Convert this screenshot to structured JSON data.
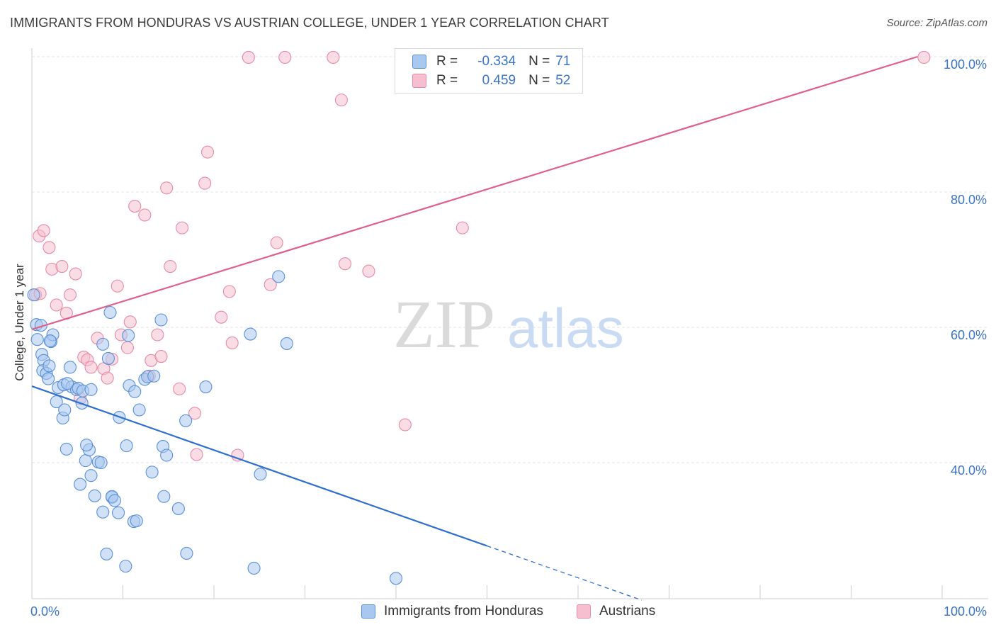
{
  "title": "IMMIGRANTS FROM HONDURAS VS AUSTRIAN COLLEGE, UNDER 1 YEAR CORRELATION CHART",
  "source": "Source: ZipAtlas.com",
  "watermark": {
    "zip": "ZIP",
    "atlas": "atlas"
  },
  "legend": {
    "rows": [
      {
        "r_label": "R =",
        "r_value": "-0.334",
        "n_label": "N =",
        "n_value": "71"
      },
      {
        "r_label": "R =",
        "r_value": "0.459",
        "n_label": "N =",
        "n_value": "52"
      }
    ]
  },
  "bottom_legend": [
    "Immigrants from Honduras",
    "Austrians"
  ],
  "colors": {
    "blue_fill": "#a9c8f0",
    "blue_stroke": "#5b8fd6",
    "blue_line": "#2f6fd0",
    "pink_fill": "#f5bfd0",
    "pink_stroke": "#e58aa8",
    "pink_line": "#e0608a",
    "axis_text": "#3a74c9",
    "grid": "#e3e3e3"
  },
  "chart_data": {
    "type": "scatter",
    "title": "IMMIGRANTS FROM HONDURAS VS AUSTRIAN COLLEGE, UNDER 1 YEAR CORRELATION CHART",
    "xlabel": "",
    "ylabel": "College, Under 1 year",
    "xlim": [
      0,
      100
    ],
    "ylim": [
      20,
      100
    ],
    "x_tick_labels": [
      "0.0%",
      "100.0%"
    ],
    "y_tick_labels": [
      "40.0%",
      "60.0%",
      "80.0%",
      "100.0%"
    ],
    "y_ticks": [
      40,
      60,
      80,
      100
    ],
    "series": [
      {
        "name": "Immigrants from Honduras",
        "r": -0.334,
        "n": 71,
        "trend": {
          "x0": 0,
          "y0": 51.3,
          "x1": 50,
          "y1": 27.7,
          "dash_to_x": 67
        },
        "points": [
          [
            0.2,
            64.8
          ],
          [
            0.5,
            60.4
          ],
          [
            0.6,
            58.2
          ],
          [
            1.1,
            56.0
          ],
          [
            1.3,
            55.1
          ],
          [
            1.2,
            53.6
          ],
          [
            1.6,
            53.2
          ],
          [
            1.8,
            52.4
          ],
          [
            1.9,
            54.3
          ],
          [
            2.1,
            57.9
          ],
          [
            2.3,
            58.9
          ],
          [
            2.7,
            49.0
          ],
          [
            2.9,
            51.1
          ],
          [
            3.4,
            46.6
          ],
          [
            3.5,
            51.5
          ],
          [
            3.6,
            47.8
          ],
          [
            3.8,
            42.0
          ],
          [
            4.2,
            54.1
          ],
          [
            4.4,
            51.2
          ],
          [
            4.9,
            50.8
          ],
          [
            5.1,
            51.0
          ],
          [
            5.5,
            48.8
          ],
          [
            5.6,
            50.6
          ],
          [
            5.3,
            36.8
          ],
          [
            5.9,
            40.3
          ],
          [
            6.3,
            41.9
          ],
          [
            6.0,
            42.6
          ],
          [
            6.5,
            38.1
          ],
          [
            6.9,
            35.1
          ],
          [
            7.3,
            40.1
          ],
          [
            7.6,
            40.0
          ],
          [
            7.8,
            57.5
          ],
          [
            7.8,
            32.7
          ],
          [
            8.2,
            26.5
          ],
          [
            8.4,
            55.4
          ],
          [
            8.6,
            62.2
          ],
          [
            8.8,
            34.9
          ],
          [
            8.8,
            35.0
          ],
          [
            9.1,
            34.4
          ],
          [
            9.5,
            32.6
          ],
          [
            9.6,
            46.7
          ],
          [
            10.3,
            24.7
          ],
          [
            10.4,
            42.5
          ],
          [
            10.6,
            58.8
          ],
          [
            10.7,
            51.4
          ],
          [
            11.2,
            31.3
          ],
          [
            11.3,
            50.5
          ],
          [
            11.5,
            31.4
          ],
          [
            11.8,
            47.8
          ],
          [
            12.4,
            52.3
          ],
          [
            12.7,
            52.7
          ],
          [
            13.2,
            38.6
          ],
          [
            13.4,
            52.8
          ],
          [
            14.2,
            61.1
          ],
          [
            14.4,
            42.4
          ],
          [
            14.5,
            35.0
          ],
          [
            14.8,
            41.1
          ],
          [
            16.1,
            33.2
          ],
          [
            16.9,
            46.2
          ],
          [
            17.0,
            26.6
          ],
          [
            19.1,
            51.2
          ],
          [
            24.0,
            59.0
          ],
          [
            24.4,
            24.4
          ],
          [
            25.1,
            38.3
          ],
          [
            27.1,
            67.5
          ],
          [
            28.0,
            57.6
          ],
          [
            40.0,
            22.9
          ],
          [
            6.5,
            50.8
          ],
          [
            3.9,
            51.7
          ],
          [
            1.0,
            60.3
          ],
          [
            2.0,
            58.0
          ]
        ]
      },
      {
        "name": "Austrians",
        "r": 0.459,
        "n": 52,
        "trend": {
          "x0": 0,
          "y0": 59.7,
          "x1": 97.3,
          "y1": 100
        },
        "points": [
          [
            0.4,
            64.8
          ],
          [
            0.8,
            73.5
          ],
          [
            1.3,
            74.3
          ],
          [
            1.9,
            71.8
          ],
          [
            2.2,
            68.6
          ],
          [
            2.7,
            63.3
          ],
          [
            3.3,
            69.0
          ],
          [
            3.8,
            62.1
          ],
          [
            4.2,
            64.8
          ],
          [
            4.8,
            67.9
          ],
          [
            5.3,
            49.5
          ],
          [
            5.7,
            55.6
          ],
          [
            6.1,
            55.2
          ],
          [
            6.5,
            54.1
          ],
          [
            7.2,
            58.4
          ],
          [
            7.9,
            53.9
          ],
          [
            8.3,
            52.5
          ],
          [
            8.8,
            55.3
          ],
          [
            9.4,
            66.1
          ],
          [
            9.8,
            58.9
          ],
          [
            10.5,
            57.0
          ],
          [
            10.8,
            60.8
          ],
          [
            11.3,
            77.9
          ],
          [
            12.4,
            76.6
          ],
          [
            12.9,
            52.8
          ],
          [
            13.1,
            55.1
          ],
          [
            13.8,
            58.9
          ],
          [
            14.2,
            55.7
          ],
          [
            14.8,
            80.6
          ],
          [
            15.2,
            69.0
          ],
          [
            16.2,
            50.9
          ],
          [
            16.5,
            74.7
          ],
          [
            17.9,
            47.3
          ],
          [
            18.1,
            41.2
          ],
          [
            19.0,
            81.3
          ],
          [
            19.3,
            85.9
          ],
          [
            20.8,
            61.5
          ],
          [
            21.7,
            65.3
          ],
          [
            22.0,
            57.7
          ],
          [
            22.6,
            41.1
          ],
          [
            23.8,
            99.9
          ],
          [
            26.2,
            66.3
          ],
          [
            26.9,
            72.5
          ],
          [
            27.8,
            99.9
          ],
          [
            33.1,
            99.9
          ],
          [
            34.0,
            93.6
          ],
          [
            34.4,
            69.4
          ],
          [
            37.0,
            68.3
          ],
          [
            41.0,
            45.6
          ],
          [
            47.3,
            74.7
          ],
          [
            98.0,
            99.9
          ],
          [
            0.9,
            65.0
          ]
        ]
      }
    ]
  }
}
